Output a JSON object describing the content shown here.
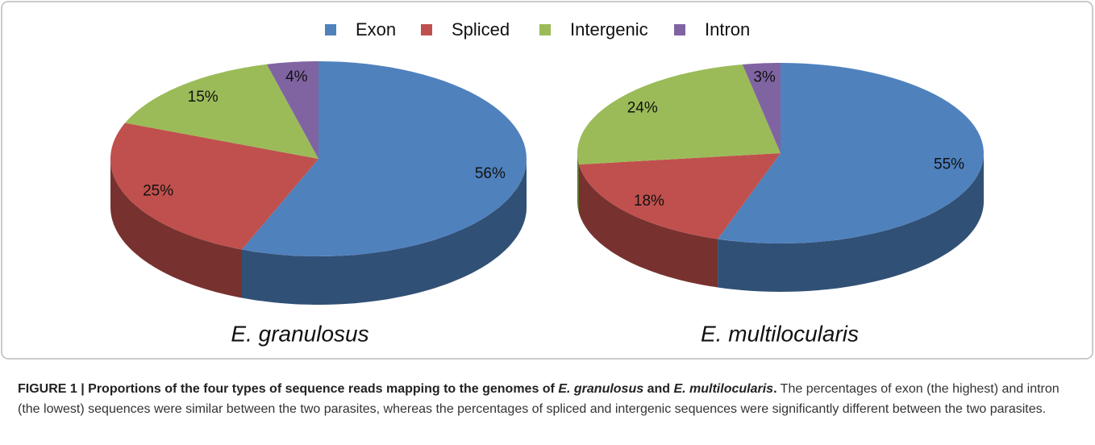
{
  "chart_data": [
    {
      "type": "pie",
      "title": "E. granulosus",
      "categories": [
        "Exon",
        "Spliced",
        "Intergenic",
        "Intron"
      ],
      "values": [
        56,
        25,
        15,
        4
      ],
      "value_labels": [
        "56%",
        "25%",
        "15%",
        "4%"
      ],
      "colors": [
        "#4f81bd",
        "#c0504d",
        "#9bbb59",
        "#8064a2"
      ]
    },
    {
      "type": "pie",
      "title": "E. multilocularis",
      "categories": [
        "Exon",
        "Spliced",
        "Intergenic",
        "Intron"
      ],
      "values": [
        55,
        18,
        24,
        3
      ],
      "value_labels": [
        "55%",
        "18%",
        "24%",
        "3%"
      ],
      "colors": [
        "#4f81bd",
        "#c0504d",
        "#9bbb59",
        "#8064a2"
      ]
    }
  ],
  "caption": {
    "parts": [
      "FIGURE 1 | Proportions of the four types of sequence reads mapping to the genomes of ",
      "E. granulosus",
      " and ",
      "E. multilocularis",
      ".",
      " The percentages of exon (the highest) and intron (the lowest) sequences were similar between the two parasites, whereas the percentages of spliced and intergenic sequences were significantly different between the two parasites."
    ]
  }
}
